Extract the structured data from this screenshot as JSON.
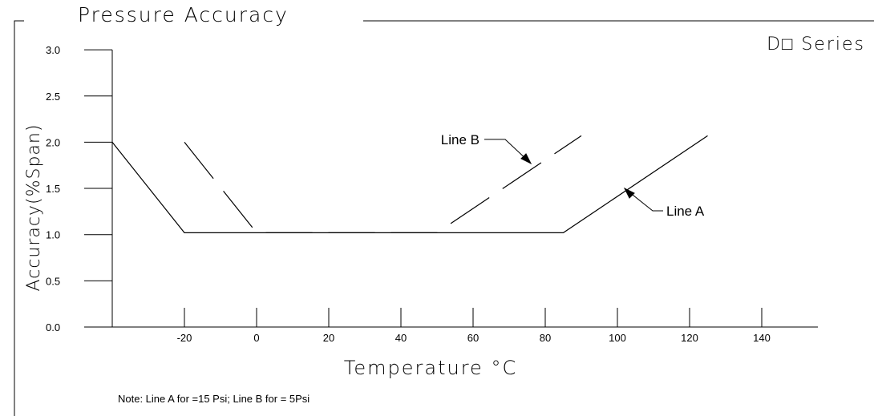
{
  "chart_data": {
    "type": "line",
    "title": "Pressure Accuracy",
    "subtitle": "D□ Series",
    "xlabel": "Temperature °C",
    "ylabel": "Accuracy(%Span)",
    "note": "Note: Line A for =15 Psi; Line B for = 5Psi",
    "xlim": [
      -40,
      155
    ],
    "ylim": [
      0,
      3.0
    ],
    "x_ticks": [
      -20,
      0,
      20,
      40,
      60,
      80,
      100,
      120,
      140
    ],
    "x_tick_labels": [
      "-20",
      "0",
      "20",
      "40",
      "60",
      "80",
      "100",
      "120",
      "140"
    ],
    "y_ticks": [
      0,
      0.5,
      1.0,
      1.5,
      2.0,
      2.5,
      3.0
    ],
    "y_tick_labels": [
      "0.0",
      "0.5",
      "1.0",
      "1.5",
      "2.0",
      "2.5",
      "3.0"
    ],
    "grid": false,
    "series": [
      {
        "name": "Line A",
        "style": "solid",
        "x": [
          -40,
          -20,
          85,
          125
        ],
        "y": [
          2.0,
          1.02,
          1.02,
          2.07
        ]
      },
      {
        "name": "Line B",
        "style": "dashed",
        "x": [
          -20,
          0,
          50,
          90
        ],
        "y": [
          2.0,
          1.02,
          1.02,
          2.07
        ]
      }
    ],
    "annotations": [
      {
        "text": "Line A",
        "series": "Line A",
        "at_x": 102,
        "at_y": 1.5
      },
      {
        "text": "Line B",
        "series": "Line B",
        "at_x": 76,
        "at_y": 1.77
      }
    ]
  }
}
